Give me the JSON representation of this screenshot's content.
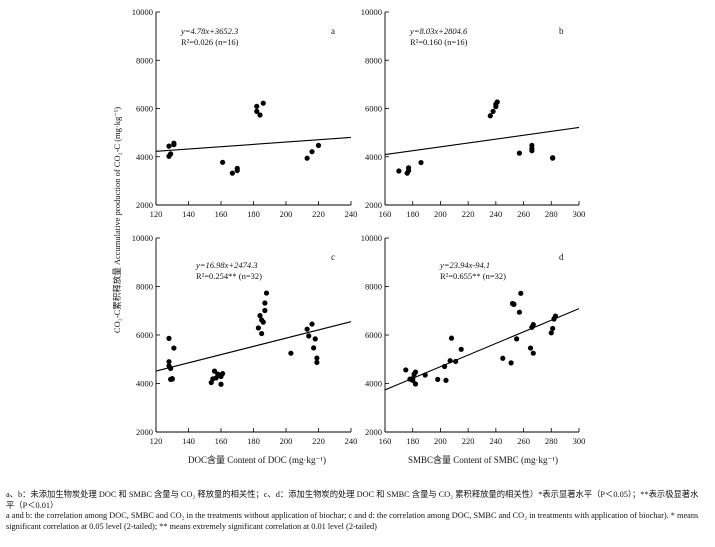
{
  "figure": {
    "ylabel": "CO₂-C累积释放量 Accumulative production of CO₂-C (mg·kg⁻¹)",
    "xlabel_doc": "DOC含量 Content of DOC (mg·kg⁻¹)",
    "xlabel_smbc": "SMBC含量 Content of SMBC (mg·kg⁻¹)"
  },
  "caption": {
    "zh": "a、b：未添加生物炭处理 DOC 和 SMBC 含量与 CO₂ 释放量的相关性；c、d：添加生物炭的处理 DOC 和 SMBC 含量与 CO₂ 累积释放量的相关性）*表示显著水平（P＜0.05）；**表示极显著水平（P＜0.01）",
    "en": "a and b: the correlation among DOC, SMBC and CO₂ in the treatments without application of biochar; c and d: the correlation among DOC, SMBC and CO₂ in treatments with application of biochar). * means significant correlation at 0.05 level (2-tailed); ** means extremely significant correlation at 0.01 level (2-tailed)"
  },
  "chart_data": [
    {
      "panel": "a",
      "type": "scatter",
      "equation": "y=4.78x+3652.3",
      "r2_text": "R²=0.026 (n=16)",
      "xlim": [
        120,
        240
      ],
      "ylim": [
        2000,
        10000
      ],
      "xticks": [
        120,
        140,
        160,
        180,
        200,
        220,
        240
      ],
      "yticks": [
        2000,
        4000,
        6000,
        8000,
        10000
      ],
      "fit": {
        "slope": 4.78,
        "intercept": 3652.3
      },
      "x": [
        128,
        128,
        129,
        131,
        131,
        161,
        167,
        170,
        170,
        182,
        182,
        184,
        186,
        213,
        216,
        220
      ],
      "y": [
        4020,
        4440,
        4120,
        4560,
        4500,
        3770,
        3320,
        3430,
        3520,
        6090,
        5880,
        5730,
        6220,
        3940,
        4210,
        4470
      ]
    },
    {
      "panel": "b",
      "type": "scatter",
      "equation": "y=8.03x+2804.6",
      "r2_text": "R²=0.160 (n=16)",
      "xlim": [
        160,
        300
      ],
      "ylim": [
        2000,
        10000
      ],
      "xticks": [
        160,
        180,
        200,
        220,
        240,
        260,
        280,
        300
      ],
      "yticks": [
        2000,
        4000,
        6000,
        8000,
        10000
      ],
      "fit": {
        "slope": 8.03,
        "intercept": 2804.6
      },
      "x": [
        170,
        176,
        177,
        177,
        186,
        236,
        238,
        240,
        240,
        241,
        257,
        266,
        266,
        266,
        281,
        281
      ],
      "y": [
        3410,
        3320,
        3420,
        3540,
        3760,
        5700,
        5880,
        6080,
        6180,
        6270,
        4150,
        4250,
        4340,
        4470,
        3940,
        3960
      ]
    },
    {
      "panel": "c",
      "type": "scatter",
      "equation": "y=16.98x+2474.3",
      "r2_text": "R²=0.254** (n=32)",
      "xlim": [
        120,
        240
      ],
      "ylim": [
        2000,
        10000
      ],
      "xticks": [
        120,
        140,
        160,
        180,
        200,
        220,
        240
      ],
      "yticks": [
        2000,
        4000,
        6000,
        8000,
        10000
      ],
      "fit": {
        "slope": 16.98,
        "intercept": 2474.3
      },
      "x": [
        128,
        128,
        128,
        129,
        129,
        130,
        130,
        131,
        154,
        155,
        156,
        157,
        158,
        160,
        160,
        161,
        183,
        184,
        185,
        185,
        186,
        187,
        187,
        188,
        203,
        213,
        214,
        216,
        217,
        218,
        219,
        219
      ],
      "y": [
        5860,
        4900,
        4730,
        4620,
        4170,
        4200,
        4180,
        5460,
        4040,
        4190,
        4510,
        4230,
        4390,
        4290,
        3970,
        4410,
        6290,
        6800,
        6620,
        6060,
        6530,
        7010,
        7320,
        7730,
        5250,
        6240,
        5960,
        6450,
        5470,
        5840,
        4870,
        5050
      ]
    },
    {
      "panel": "d",
      "type": "scatter",
      "equation": "y=23.94x-94.1",
      "r2_text": "R²=0.655** (n=32)",
      "xlim": [
        160,
        300
      ],
      "ylim": [
        2000,
        10000
      ],
      "xticks": [
        160,
        180,
        200,
        220,
        240,
        260,
        280,
        300
      ],
      "yticks": [
        2000,
        4000,
        6000,
        8000,
        10000
      ],
      "fit": {
        "slope": 23.94,
        "intercept": -94.1
      },
      "x": [
        175,
        178,
        180,
        180,
        181,
        182,
        182,
        189,
        198,
        203,
        204,
        207,
        208,
        211,
        215,
        245,
        251,
        252,
        253,
        253,
        255,
        257,
        258,
        265,
        266,
        267,
        267,
        280,
        281,
        282,
        282,
        283
      ],
      "y": [
        4560,
        4180,
        4130,
        4200,
        4380,
        4470,
        3980,
        4350,
        4170,
        4700,
        4130,
        4940,
        5870,
        4910,
        5410,
        5040,
        4850,
        7300,
        7270,
        7260,
        5840,
        6940,
        7720,
        5460,
        6320,
        6430,
        5250,
        6090,
        6270,
        6660,
        6670,
        6780
      ]
    }
  ]
}
